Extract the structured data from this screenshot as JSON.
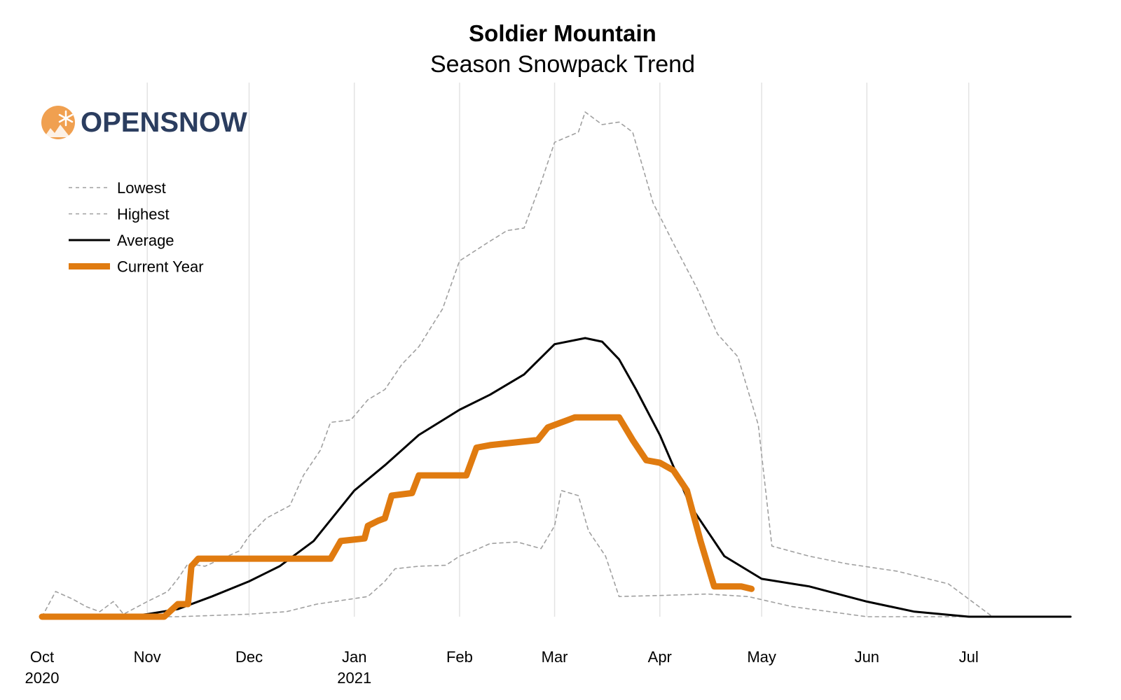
{
  "logo": {
    "text": "OPENSNOW",
    "text_color": "#2b3d5f",
    "icon_color": "#f0a050",
    "icon": "snowflake-mountain-icon"
  },
  "chart_data": {
    "type": "line",
    "title": "Soldier Mountain",
    "subtitle": "Season Snowpack Trend",
    "xlabel": "",
    "ylabel": "",
    "xlim": [
      "2020-10-01",
      "2021-07-31"
    ],
    "ylim": [
      0,
      100
    ],
    "grid": "vertical",
    "legend_position": "top-left",
    "x_ticks": [
      {
        "date": "2020-10-01",
        "label": "Oct",
        "year": "2020"
      },
      {
        "date": "2020-11-01",
        "label": "Nov",
        "year": ""
      },
      {
        "date": "2020-12-01",
        "label": "Dec",
        "year": ""
      },
      {
        "date": "2021-01-01",
        "label": "Jan",
        "year": "2021"
      },
      {
        "date": "2021-02-01",
        "label": "Feb",
        "year": ""
      },
      {
        "date": "2021-03-01",
        "label": "Mar",
        "year": ""
      },
      {
        "date": "2021-04-01",
        "label": "Apr",
        "year": ""
      },
      {
        "date": "2021-05-01",
        "label": "May",
        "year": ""
      },
      {
        "date": "2021-06-01",
        "label": "Jun",
        "year": ""
      },
      {
        "date": "2021-07-01",
        "label": "Jul",
        "year": ""
      }
    ],
    "series": [
      {
        "name": "Lowest",
        "color": "#a0a0a0",
        "style": "dashed",
        "points": [
          [
            "2020-10-01",
            0
          ],
          [
            "2020-11-10",
            0
          ],
          [
            "2020-12-01",
            0.5
          ],
          [
            "2020-12-12",
            1
          ],
          [
            "2020-12-21",
            2.5
          ],
          [
            "2020-12-31",
            3.5
          ],
          [
            "2021-01-05",
            4
          ],
          [
            "2021-01-10",
            7
          ],
          [
            "2021-01-13",
            9.5
          ],
          [
            "2021-01-20",
            10
          ],
          [
            "2021-01-28",
            10.2
          ],
          [
            "2021-02-01",
            12
          ],
          [
            "2021-02-05",
            13
          ],
          [
            "2021-02-10",
            14.5
          ],
          [
            "2021-02-18",
            14.8
          ],
          [
            "2021-02-25",
            13.5
          ],
          [
            "2021-03-01",
            18
          ],
          [
            "2021-03-03",
            25
          ],
          [
            "2021-03-08",
            24
          ],
          [
            "2021-03-11",
            17
          ],
          [
            "2021-03-16",
            12
          ],
          [
            "2021-03-20",
            4
          ],
          [
            "2021-04-01",
            4.2
          ],
          [
            "2021-04-15",
            4.5
          ],
          [
            "2021-04-27",
            4
          ],
          [
            "2021-05-10",
            2
          ],
          [
            "2021-06-01",
            0
          ],
          [
            "2021-07-31",
            0
          ]
        ]
      },
      {
        "name": "Highest",
        "color": "#a0a0a0",
        "style": "dashed",
        "points": [
          [
            "2020-10-01",
            0
          ],
          [
            "2020-10-05",
            5
          ],
          [
            "2020-10-10",
            3.5
          ],
          [
            "2020-10-14",
            2
          ],
          [
            "2020-10-18",
            1
          ],
          [
            "2020-10-22",
            3
          ],
          [
            "2020-10-25",
            0.5
          ],
          [
            "2020-11-01",
            3
          ],
          [
            "2020-11-07",
            5
          ],
          [
            "2020-11-10",
            7.5
          ],
          [
            "2020-11-13",
            10.5
          ],
          [
            "2020-11-18",
            10
          ],
          [
            "2020-11-28",
            13
          ],
          [
            "2020-12-01",
            16
          ],
          [
            "2020-12-06",
            19.5
          ],
          [
            "2020-12-13",
            22
          ],
          [
            "2020-12-17",
            28
          ],
          [
            "2020-12-22",
            33
          ],
          [
            "2020-12-25",
            38.5
          ],
          [
            "2020-12-31",
            39
          ],
          [
            "2021-01-05",
            43
          ],
          [
            "2021-01-10",
            45
          ],
          [
            "2021-01-15",
            50
          ],
          [
            "2021-01-20",
            53.5
          ],
          [
            "2021-01-27",
            61
          ],
          [
            "2021-02-01",
            70.5
          ],
          [
            "2021-02-09",
            74
          ],
          [
            "2021-02-15",
            76.5
          ],
          [
            "2021-02-20",
            77
          ],
          [
            "2021-02-25",
            86
          ],
          [
            "2021-03-01",
            94
          ],
          [
            "2021-03-08",
            96
          ],
          [
            "2021-03-10",
            100
          ],
          [
            "2021-03-15",
            97.5
          ],
          [
            "2021-03-20",
            98
          ],
          [
            "2021-03-24",
            96
          ],
          [
            "2021-03-30",
            82
          ],
          [
            "2021-04-05",
            74
          ],
          [
            "2021-04-12",
            65
          ],
          [
            "2021-04-18",
            56
          ],
          [
            "2021-04-24",
            51.5
          ],
          [
            "2021-04-30",
            38
          ],
          [
            "2021-05-04",
            14
          ],
          [
            "2021-05-15",
            12
          ],
          [
            "2021-05-26",
            10.5
          ],
          [
            "2021-06-10",
            9
          ],
          [
            "2021-06-25",
            6.5
          ],
          [
            "2021-07-08",
            0
          ],
          [
            "2021-07-31",
            0
          ]
        ]
      },
      {
        "name": "Average",
        "color": "#000000",
        "style": "solid",
        "points": [
          [
            "2020-10-01",
            0
          ],
          [
            "2020-10-25",
            0
          ],
          [
            "2020-11-01",
            0.5
          ],
          [
            "2020-11-10",
            1.5
          ],
          [
            "2020-11-20",
            4
          ],
          [
            "2020-12-01",
            7
          ],
          [
            "2020-12-10",
            10
          ],
          [
            "2020-12-20",
            15
          ],
          [
            "2021-01-01",
            25
          ],
          [
            "2021-01-10",
            30
          ],
          [
            "2021-01-20",
            36
          ],
          [
            "2021-02-01",
            41
          ],
          [
            "2021-02-10",
            44
          ],
          [
            "2021-02-20",
            48
          ],
          [
            "2021-03-01",
            54
          ],
          [
            "2021-03-10",
            55.2
          ],
          [
            "2021-03-15",
            54.5
          ],
          [
            "2021-03-20",
            51
          ],
          [
            "2021-03-25",
            45
          ],
          [
            "2021-04-01",
            36
          ],
          [
            "2021-04-10",
            22
          ],
          [
            "2021-04-20",
            12
          ],
          [
            "2021-05-01",
            7.5
          ],
          [
            "2021-05-15",
            6
          ],
          [
            "2021-06-01",
            3
          ],
          [
            "2021-06-15",
            1
          ],
          [
            "2021-07-01",
            0
          ],
          [
            "2021-07-31",
            0
          ]
        ]
      },
      {
        "name": "Current Year",
        "color": "#e07b10",
        "style": "solid",
        "points": [
          [
            "2020-10-01",
            0
          ],
          [
            "2020-11-06",
            0
          ],
          [
            "2020-11-10",
            2.5
          ],
          [
            "2020-11-13",
            2.5
          ],
          [
            "2020-11-14",
            10
          ],
          [
            "2020-11-16",
            11.5
          ],
          [
            "2020-11-25",
            11.5
          ],
          [
            "2020-12-25",
            11.5
          ],
          [
            "2020-12-28",
            15
          ],
          [
            "2021-01-04",
            15.5
          ],
          [
            "2021-01-05",
            18
          ],
          [
            "2021-01-08",
            19
          ],
          [
            "2021-01-10",
            19.5
          ],
          [
            "2021-01-12",
            24
          ],
          [
            "2021-01-18",
            24.5
          ],
          [
            "2021-01-20",
            28
          ],
          [
            "2021-01-26",
            28
          ],
          [
            "2021-02-03",
            28
          ],
          [
            "2021-02-06",
            33.5
          ],
          [
            "2021-02-10",
            34
          ],
          [
            "2021-02-24",
            35
          ],
          [
            "2021-02-27",
            37.5
          ],
          [
            "2021-03-05",
            39
          ],
          [
            "2021-03-07",
            39.5
          ],
          [
            "2021-03-20",
            39.5
          ],
          [
            "2021-03-24",
            35
          ],
          [
            "2021-03-28",
            31
          ],
          [
            "2021-04-01",
            30.5
          ],
          [
            "2021-04-05",
            29
          ],
          [
            "2021-04-09",
            25
          ],
          [
            "2021-04-13",
            15
          ],
          [
            "2021-04-17",
            6
          ],
          [
            "2021-04-25",
            6
          ],
          [
            "2021-04-28",
            5.5
          ]
        ]
      }
    ]
  }
}
